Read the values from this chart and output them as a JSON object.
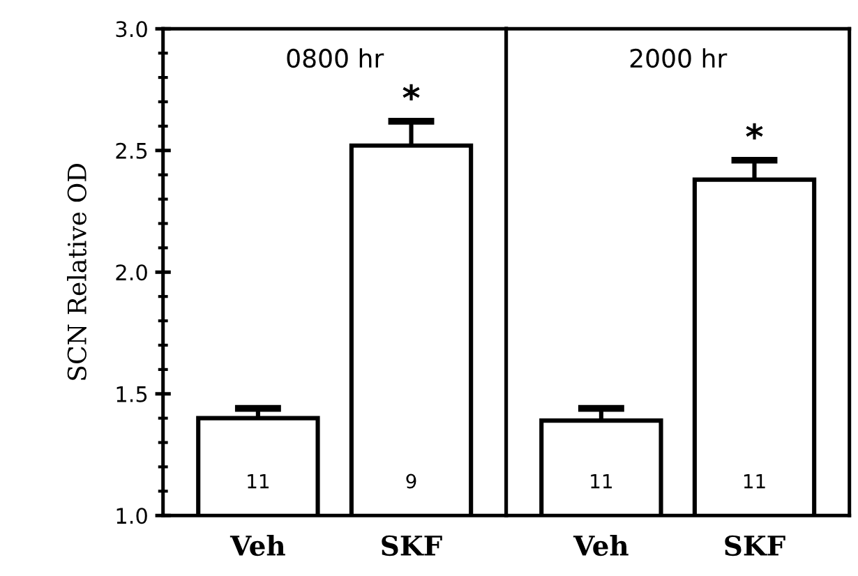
{
  "chart_data": [
    {
      "type": "bar",
      "title": "0800 hr",
      "ylabel": "SCN Relative OD",
      "categories": [
        "Veh",
        "SKF"
      ],
      "values": [
        1.4,
        2.52
      ],
      "errors": [
        [
          1.4,
          1.44
        ],
        [
          2.52,
          2.62
        ]
      ],
      "color": "#ffffff",
      "ylim": [
        1.0,
        3.0
      ],
      "yticks": [
        {
          "value": 1.0,
          "label": "1.0"
        },
        {
          "value": 1.5,
          "label": "1.5"
        },
        {
          "value": 2.0,
          "label": "2.0"
        },
        {
          "value": 2.5,
          "label": "2.5"
        },
        {
          "value": 3.0,
          "label": "3.0"
        }
      ],
      "annotations": [
        {
          "text": "*",
          "x": "SKF",
          "y": 2.62
        },
        "11",
        "9"
      ]
    },
    {
      "type": "bar",
      "title": "2000 hr",
      "categories": [
        "Veh",
        "SKF"
      ],
      "values": [
        1.39,
        2.38
      ],
      "errors": [
        [
          1.39,
          1.44
        ],
        [
          2.38,
          2.46
        ]
      ],
      "color": "#ffffff",
      "ylim": [
        1.0,
        3.0
      ],
      "tick_labels": "x",
      "annotations": [
        {
          "text": "*",
          "x": "SKF",
          "y": 2.46
        },
        "11",
        "11"
      ]
    }
  ]
}
